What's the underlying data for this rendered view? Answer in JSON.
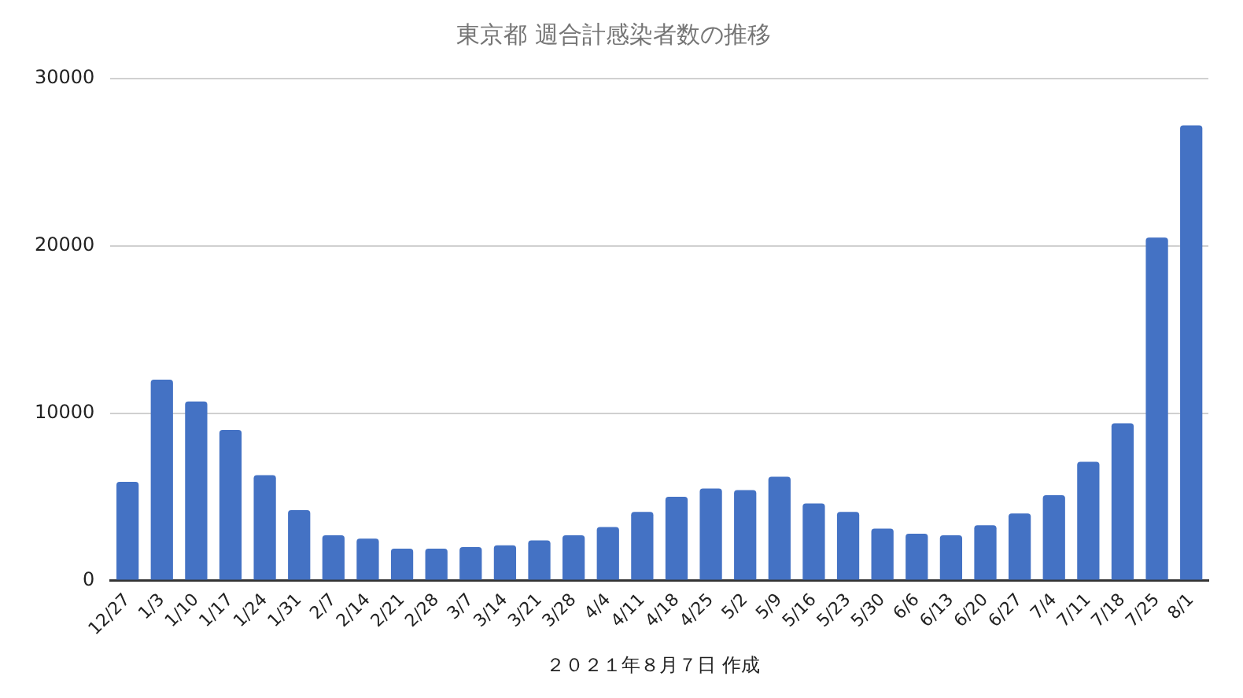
{
  "chart_data": {
    "type": "bar",
    "title": "東京都 週合計感染者数の推移",
    "categories": [
      "12/27",
      "1/3",
      "1/10",
      "1/17",
      "1/24",
      "1/31",
      "2/7",
      "2/14",
      "2/21",
      "2/28",
      "3/7",
      "3/14",
      "3/21",
      "3/28",
      "4/4",
      "4/11",
      "4/18",
      "4/25",
      "5/2",
      "5/9",
      "5/16",
      "5/23",
      "5/30",
      "6/6",
      "6/13",
      "6/20",
      "6/27",
      "7/4",
      "7/11",
      "7/18",
      "7/25",
      "8/1"
    ],
    "values": [
      5900,
      12000,
      10700,
      9000,
      6300,
      4200,
      2700,
      2500,
      1900,
      1900,
      2000,
      2100,
      2400,
      2700,
      3200,
      4100,
      5000,
      5500,
      5400,
      6200,
      4600,
      4100,
      3100,
      2800,
      2700,
      3300,
      4000,
      5100,
      7100,
      9400,
      20500,
      27200
    ],
    "color": "#4472c4",
    "ylim": [
      0,
      30000
    ],
    "yticks": [
      0,
      10000,
      20000,
      30000
    ],
    "grid": "y",
    "annotations": [
      "２０２１年８月７日 作成"
    ]
  }
}
